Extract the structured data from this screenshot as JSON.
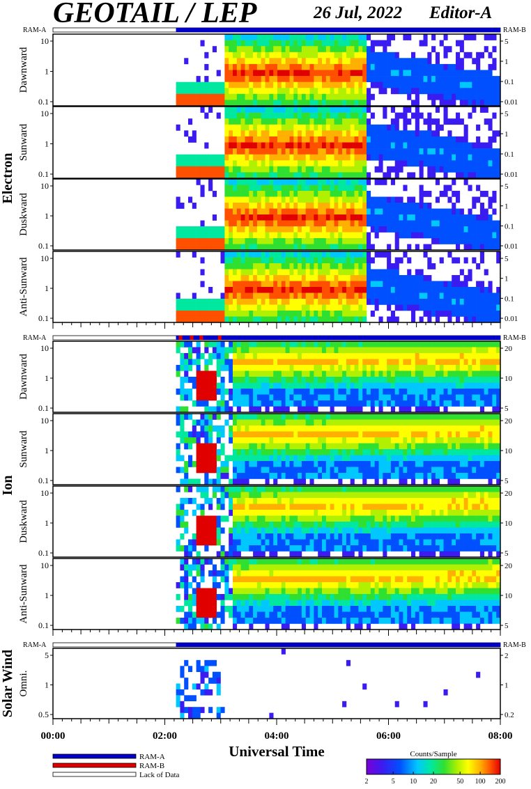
{
  "header": {
    "title": "GEOTAIL / LEP",
    "date": "26 Jul, 2022",
    "editor": "Editor-A"
  },
  "chart_data": {
    "type": "heatmap",
    "title": "GEOTAIL / LEP",
    "xlabel": "Universal Time",
    "x_ticks": [
      "00:00",
      "02:00",
      "04:00",
      "06:00",
      "08:00"
    ],
    "x_range_hours": [
      0,
      8
    ],
    "ram_labels": {
      "left": "RAM-A",
      "right": "RAM-B"
    },
    "groups": [
      {
        "name": "Electron",
        "panels": [
          {
            "name": "Dawnward",
            "left_ticks": [
              "0.1",
              "1",
              "10"
            ],
            "right_ticks": [
              "0.01",
              "0.1",
              "1",
              "5"
            ]
          },
          {
            "name": "Sunward",
            "left_ticks": [
              "0.1",
              "1",
              "10"
            ],
            "right_ticks": [
              "0.01",
              "0.1",
              "1",
              "5"
            ]
          },
          {
            "name": "Duskward",
            "left_ticks": [
              "0.1",
              "1",
              "10"
            ],
            "right_ticks": [
              "0.01",
              "0.1",
              "1",
              "5"
            ]
          },
          {
            "name": "Anti-Sunward",
            "left_ticks": [
              "0.1",
              "1",
              "10"
            ],
            "right_ticks": [
              "0.01",
              "0.1",
              "1",
              "5"
            ]
          }
        ]
      },
      {
        "name": "Ion",
        "panels": [
          {
            "name": "Dawnward",
            "left_ticks": [
              "0.1",
              "1",
              "10"
            ],
            "right_ticks": [
              "5",
              "10",
              "20"
            ]
          },
          {
            "name": "Sunward",
            "left_ticks": [
              "0.1",
              "1",
              "10"
            ],
            "right_ticks": [
              "5",
              "10",
              "20"
            ]
          },
          {
            "name": "Duskward",
            "left_ticks": [
              "0.1",
              "1",
              "10"
            ],
            "right_ticks": [
              "5",
              "10",
              "20"
            ]
          },
          {
            "name": "Anti-Sunward",
            "left_ticks": [
              "0.1",
              "1",
              "10"
            ],
            "right_ticks": [
              "5",
              "10",
              "20"
            ]
          }
        ]
      },
      {
        "name": "Solar Wind",
        "panels": [
          {
            "name": "Omni.",
            "left_ticks": [
              "0.5",
              "1",
              "5"
            ],
            "right_ticks": [
              "0.2",
              "1",
              "2"
            ]
          }
        ]
      }
    ],
    "data_coverage_hours": [
      2.2,
      8.0
    ],
    "legend": [
      {
        "label": "RAM-A",
        "color": "#0000c8"
      },
      {
        "label": "RAM-B",
        "color": "#e00000"
      },
      {
        "label": "Lack of Data",
        "color": "#ffffff"
      }
    ],
    "colorbar": {
      "title": "Counts/Sample",
      "ticks": [
        "2",
        "5",
        "10",
        "20",
        "50",
        "100",
        "200"
      ],
      "colors": [
        "#7a00d8",
        "#3a1cf0",
        "#0050ff",
        "#00c8ff",
        "#00e8a0",
        "#30e030",
        "#b0f000",
        "#ffff00",
        "#ffb000",
        "#ff5000",
        "#e00000"
      ]
    }
  }
}
